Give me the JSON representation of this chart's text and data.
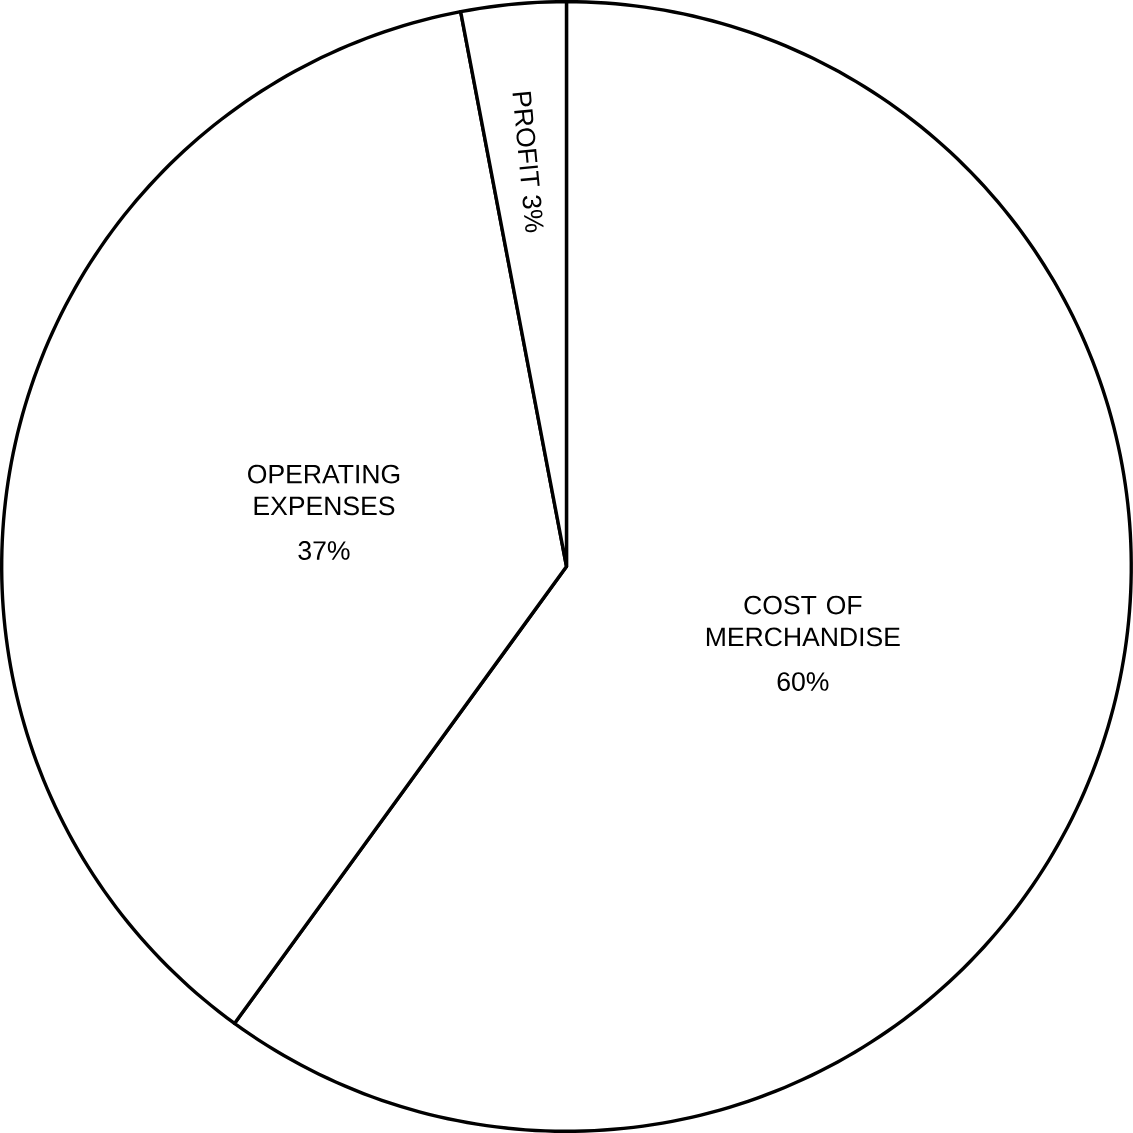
{
  "chart_data": {
    "type": "pie",
    "categories": [
      "COST OF MERCHANDISE",
      "OPERATING EXPENSES",
      "PROFIT"
    ],
    "values": [
      60,
      37,
      3
    ],
    "value_labels": [
      "60%",
      "37%",
      "3%"
    ],
    "colors": [
      "#ffffff",
      "#ffffff",
      "#ffffff"
    ]
  }
}
